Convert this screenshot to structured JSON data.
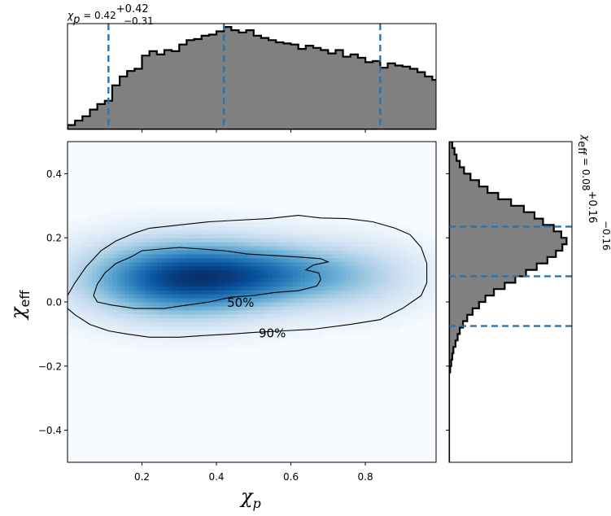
{
  "chart_data": [
    {
      "panel": "top-marginal",
      "type": "histogram-step",
      "title": {
        "symbol": "χ",
        "sub": "p",
        "equals": " = 0.42",
        "sup": "+0.42",
        "low": "−0.31"
      },
      "xlim": [
        0.0,
        0.99
      ],
      "bin_edges_start": 0.0,
      "bin_width": 0.02,
      "counts": [
        4,
        8,
        12,
        18,
        23,
        26,
        40,
        48,
        53,
        55,
        67,
        71,
        68,
        72,
        71,
        77,
        81,
        82,
        85,
        86,
        89,
        93,
        90,
        88,
        90,
        85,
        83,
        81,
        79,
        78,
        77,
        73,
        76,
        74,
        72,
        69,
        72,
        66,
        68,
        65,
        61,
        62,
        56,
        60,
        58,
        57,
        55,
        52,
        48,
        45,
        41,
        44,
        35,
        32,
        30,
        28,
        22,
        20,
        16,
        13
      ],
      "ylim": [
        0,
        96
      ],
      "quantile_lines": [
        0.11,
        0.42,
        0.84
      ],
      "fill_color": "#808080",
      "line_color": "#2a75b0"
    },
    {
      "panel": "joint-density",
      "type": "heatmap",
      "xlabel": {
        "symbol": "χ",
        "sub": "p"
      },
      "ylabel": {
        "symbol": "χ",
        "sub": "eff"
      },
      "xlim": [
        0.0,
        0.99
      ],
      "ylim": [
        -0.5,
        0.5
      ],
      "x_ticks": [
        0.2,
        0.4,
        0.6,
        0.8
      ],
      "x_tick_labels": [
        "0.2",
        "0.4",
        "0.6",
        "0.8"
      ],
      "y_ticks": [
        0.4,
        0.2,
        0.0,
        -0.2,
        -0.4
      ],
      "y_tick_labels": [
        "0.4",
        "0.2",
        "0.0",
        "−0.2",
        "−0.4"
      ],
      "colormap": "Blues",
      "density_components": [
        {
          "cx": 0.31,
          "cy": 0.075,
          "sx": 0.17,
          "sy": 0.075,
          "w": 1.0
        },
        {
          "cx": 0.56,
          "cy": 0.09,
          "sx": 0.14,
          "sy": 0.06,
          "w": 0.45
        },
        {
          "cx": 0.78,
          "cy": 0.08,
          "sx": 0.12,
          "sy": 0.07,
          "w": 0.22
        }
      ],
      "contours": [
        {
          "label": "90%",
          "label_at": [
            0.55,
            -0.095
          ],
          "points": [
            [
              0.0,
              0.02
            ],
            [
              0.02,
              0.06
            ],
            [
              0.05,
              0.11
            ],
            [
              0.09,
              0.16
            ],
            [
              0.13,
              0.19
            ],
            [
              0.18,
              0.215
            ],
            [
              0.22,
              0.23
            ],
            [
              0.3,
              0.24
            ],
            [
              0.38,
              0.25
            ],
            [
              0.46,
              0.255
            ],
            [
              0.54,
              0.26
            ],
            [
              0.62,
              0.27
            ],
            [
              0.68,
              0.262
            ],
            [
              0.75,
              0.26
            ],
            [
              0.82,
              0.25
            ],
            [
              0.88,
              0.23
            ],
            [
              0.92,
              0.21
            ],
            [
              0.95,
              0.17
            ],
            [
              0.965,
              0.12
            ],
            [
              0.965,
              0.06
            ],
            [
              0.95,
              0.02
            ],
            [
              0.9,
              -0.02
            ],
            [
              0.84,
              -0.055
            ],
            [
              0.76,
              -0.07
            ],
            [
              0.66,
              -0.085
            ],
            [
              0.58,
              -0.09
            ],
            [
              0.5,
              -0.095
            ],
            [
              0.44,
              -0.1
            ],
            [
              0.36,
              -0.105
            ],
            [
              0.3,
              -0.11
            ],
            [
              0.22,
              -0.11
            ],
            [
              0.16,
              -0.1
            ],
            [
              0.11,
              -0.09
            ],
            [
              0.06,
              -0.07
            ],
            [
              0.02,
              -0.04
            ],
            [
              0.0,
              -0.02
            ]
          ]
        },
        {
          "label": "50%",
          "label_at": [
            0.465,
            0.0
          ],
          "points": [
            [
              0.07,
              0.02
            ],
            [
              0.08,
              0.055
            ],
            [
              0.1,
              0.09
            ],
            [
              0.13,
              0.12
            ],
            [
              0.17,
              0.14
            ],
            [
              0.2,
              0.16
            ],
            [
              0.25,
              0.165
            ],
            [
              0.3,
              0.17
            ],
            [
              0.36,
              0.165
            ],
            [
              0.42,
              0.16
            ],
            [
              0.48,
              0.15
            ],
            [
              0.55,
              0.145
            ],
            [
              0.62,
              0.14
            ],
            [
              0.68,
              0.135
            ],
            [
              0.7,
              0.125
            ],
            [
              0.66,
              0.115
            ],
            [
              0.64,
              0.1
            ],
            [
              0.675,
              0.09
            ],
            [
              0.68,
              0.07
            ],
            [
              0.67,
              0.05
            ],
            [
              0.62,
              0.035
            ],
            [
              0.56,
              0.03
            ],
            [
              0.5,
              0.02
            ],
            [
              0.44,
              0.015
            ],
            [
              0.38,
              0.0
            ],
            [
              0.32,
              -0.01
            ],
            [
              0.26,
              -0.02
            ],
            [
              0.18,
              -0.02
            ],
            [
              0.12,
              -0.01
            ],
            [
              0.08,
              0.0
            ]
          ]
        }
      ]
    },
    {
      "panel": "right-marginal",
      "type": "histogram-step-horizontal",
      "title": {
        "symbol": "χ",
        "sub": "eff",
        "equals": " = 0.08",
        "sup": "+0.16",
        "low": "−0.16"
      },
      "ylim": [
        -0.5,
        0.5
      ],
      "bin_edges_start": -0.5,
      "bin_width": 0.02,
      "counts": [
        0,
        0,
        0,
        0,
        0,
        0,
        0,
        0,
        0,
        0,
        0,
        0,
        0,
        0,
        1,
        2,
        3,
        4,
        6,
        8,
        10,
        13,
        17,
        22,
        28,
        34,
        42,
        52,
        62,
        72,
        82,
        92,
        100,
        106,
        110,
        105,
        98,
        88,
        80,
        70,
        58,
        46,
        36,
        28,
        20,
        14,
        10,
        7,
        5,
        3
      ],
      "xlim": [
        0,
        115
      ],
      "quantile_lines": [
        -0.075,
        0.08,
        0.235
      ],
      "fill_color": "#808080",
      "line_color": "#2a75b0"
    }
  ]
}
